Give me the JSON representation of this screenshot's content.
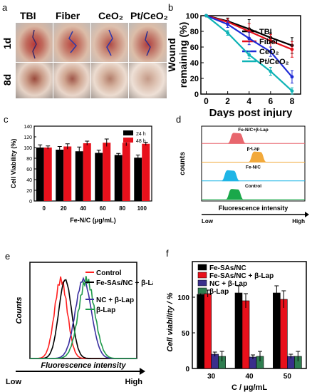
{
  "panels": {
    "a": {
      "letter": "a",
      "col_labels": [
        "TBI",
        "Fiber",
        "CeO₂",
        "Pt/CeO₂"
      ],
      "row_labels": [
        "1d",
        "8d"
      ]
    },
    "b": {
      "letter": "b"
    },
    "c": {
      "letter": "c"
    },
    "d": {
      "letter": "d"
    },
    "e": {
      "letter": "e"
    },
    "f": {
      "letter": "f"
    }
  },
  "chart_data": [
    {
      "panel": "b",
      "type": "line",
      "xlabel": "Days post injury",
      "ylabel": "Wound remaining (%)",
      "x": [
        0,
        2,
        4,
        6,
        8
      ],
      "xlim": [
        -0.5,
        8.8
      ],
      "ylim": [
        0,
        100
      ],
      "xticks": [
        "0",
        "2",
        "4",
        "6",
        "8"
      ],
      "yticks": [
        "0",
        "20",
        "40",
        "60",
        "80",
        "100"
      ],
      "legend_position": "top-right",
      "series": [
        {
          "name": "TBI",
          "color": "#000000",
          "values": [
            100,
            93,
            83,
            72,
            62
          ],
          "err": [
            0,
            4,
            12,
            6,
            10
          ]
        },
        {
          "name": "Fiber",
          "color": "#e8101b",
          "values": [
            100,
            92,
            80,
            68,
            57
          ],
          "err": [
            0,
            4,
            10,
            8,
            10
          ]
        },
        {
          "name": "CeO₂",
          "color": "#1e2bd6",
          "values": [
            100,
            89,
            71,
            54,
            22
          ],
          "err": [
            0,
            4,
            8,
            6,
            8
          ]
        },
        {
          "name": "Pt/CeO₂",
          "color": "#0fb3b6",
          "values": [
            100,
            78,
            50,
            29,
            4
          ],
          "err": [
            0,
            3,
            5,
            5,
            4
          ]
        }
      ]
    },
    {
      "panel": "c",
      "type": "bar",
      "xlabel": "Fe-N/C (μg/mL)",
      "ylabel": "Cell Viability (%)",
      "categories": [
        "0",
        "20",
        "40",
        "60",
        "80",
        "100"
      ],
      "ylim": [
        0,
        140
      ],
      "yticks": [
        "0",
        "20",
        "40",
        "60",
        "80",
        "100",
        "120",
        "140"
      ],
      "legend_position": "top-right",
      "series": [
        {
          "name": "24 h",
          "color": "#000000",
          "values": [
            100,
            96,
            93,
            90,
            86,
            81
          ],
          "err": [
            5,
            6,
            8,
            5,
            3,
            5
          ]
        },
        {
          "name": "48 h",
          "color": "#e8101b",
          "values": [
            100,
            102,
            108,
            109,
            109,
            107
          ],
          "err": [
            3,
            5,
            4,
            7,
            6,
            3
          ]
        }
      ]
    },
    {
      "panel": "d",
      "type": "area",
      "xlabel": "Fluorescence intensity",
      "ylabel": "counts",
      "x_range_labels": [
        "Low",
        "High"
      ],
      "series": [
        {
          "name": "Fe-N/C+β-Lap",
          "color": "#e8676e",
          "peak": 0.34
        },
        {
          "name": "β-Lap",
          "color": "#f2a93b",
          "peak": 0.54
        },
        {
          "name": "Fe-N/C",
          "color": "#1fb5e6",
          "peak": 0.28
        },
        {
          "name": "Control",
          "color": "#1aa84a",
          "peak": 0.32
        }
      ]
    },
    {
      "panel": "e",
      "type": "line",
      "xlabel": "Fluorescence intensity",
      "ylabel": "Counts",
      "x_range_labels": [
        "Low",
        "High"
      ],
      "legend_position": "top-right",
      "series": [
        {
          "name": "Control",
          "color": "#ff2020",
          "peak": 0.29
        },
        {
          "name": "Fe-SAs/NC + β-Lap",
          "color": "#000000",
          "peak": 0.33
        },
        {
          "name": "NC + β-Lap",
          "color": "#3a2fa0",
          "peak": 0.5
        },
        {
          "name": "β-Lap",
          "color": "#1f9a4a",
          "peak": 0.53
        }
      ]
    },
    {
      "panel": "f",
      "type": "bar",
      "xlabel": "C / μg/mL",
      "ylabel": "Cell viability / %",
      "categories": [
        "30",
        "40",
        "50"
      ],
      "ylim": [
        0,
        150
      ],
      "yticks": [
        "0",
        "50",
        "100"
      ],
      "legend_position": "top",
      "series": [
        {
          "name": "Fe-SAs/NC",
          "color": "#000000",
          "values": [
            104,
            106,
            106
          ],
          "err": [
            3,
            10,
            10
          ]
        },
        {
          "name": "Fe-SAs/NC + β-Lap",
          "color": "#e8101b",
          "values": [
            105,
            95,
            97
          ],
          "err": [
            5,
            10,
            12
          ]
        },
        {
          "name": "NC + β-Lap",
          "color": "#3a2f8c",
          "values": [
            20,
            16,
            17
          ],
          "err": [
            3,
            3,
            3
          ]
        },
        {
          "name": "β-Lap",
          "color": "#2e7d4f",
          "values": [
            17,
            17,
            17
          ],
          "err": [
            7,
            7,
            7
          ]
        }
      ]
    }
  ]
}
